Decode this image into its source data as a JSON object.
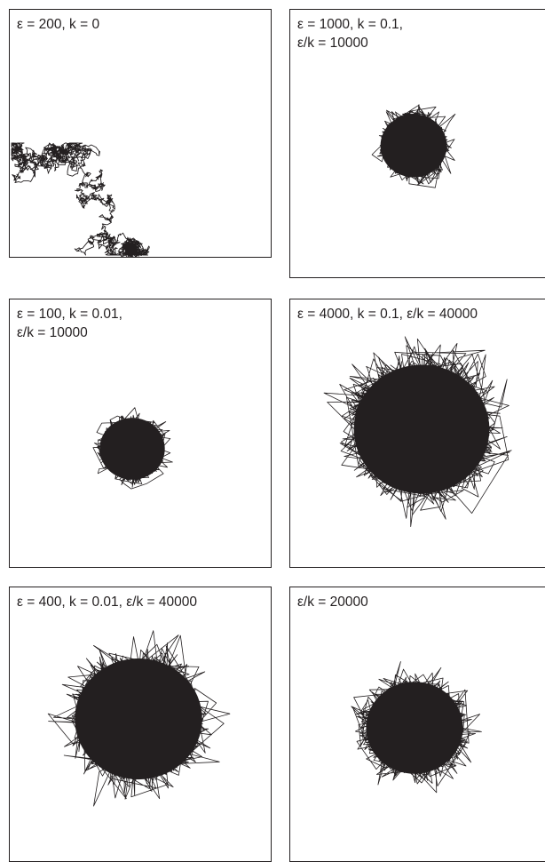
{
  "chart_data": [
    {
      "type": "random-walk",
      "title_line1": "ε = 200, k = 0",
      "title_line2": "",
      "epsilon": 200,
      "k": 0,
      "epsilon_over_k": null,
      "line_color": "#231f20"
    },
    {
      "type": "random-walk",
      "title_line1": "ε = 1000, k = 0.1,",
      "title_line2": "ε/k = 10000",
      "epsilon": 1000,
      "k": 0.1,
      "epsilon_over_k": 10000,
      "line_color": "#231f20"
    },
    {
      "type": "random-walk",
      "title_line1": "ε = 100, k = 0.01,",
      "title_line2": "ε/k = 10000",
      "epsilon": 100,
      "k": 0.01,
      "epsilon_over_k": 10000,
      "line_color": "#231f20"
    },
    {
      "type": "random-walk",
      "title_line1": "ε = 4000, k = 0.1, ε/k = 40000",
      "title_line2": "",
      "epsilon": 4000,
      "k": 0.1,
      "epsilon_over_k": 40000,
      "line_color": "#231f20"
    },
    {
      "type": "random-walk",
      "title_line1": "ε = 400, k = 0.01, ε/k = 40000",
      "title_line2": "",
      "epsilon": 400,
      "k": 0.01,
      "epsilon_over_k": 40000,
      "line_color": "#231f20"
    },
    {
      "type": "random-walk",
      "title_line1": "ε/k = 20000",
      "title_line2": "",
      "epsilon": null,
      "k": null,
      "epsilon_over_k": 20000,
      "line_color": "#231f20"
    }
  ]
}
